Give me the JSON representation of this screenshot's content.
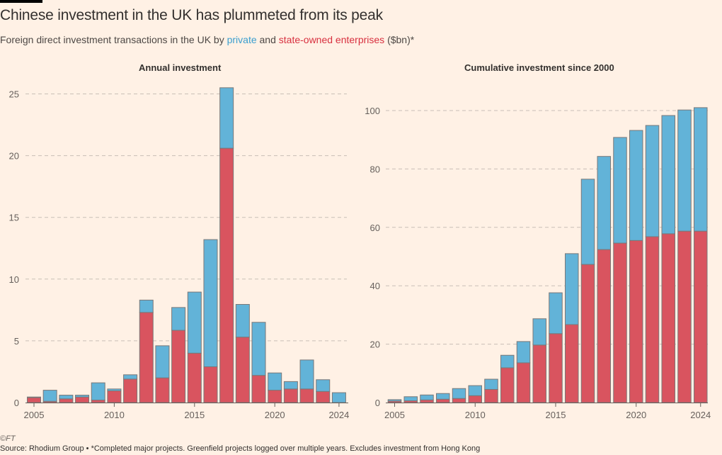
{
  "header": {
    "title": "Chinese investment in the UK has plummeted from its peak",
    "subtitle_prefix": "Foreign direct investment transactions in the UK by ",
    "subtitle_private": "private",
    "subtitle_and": " and ",
    "subtitle_soe": "state-owned enterprises",
    "subtitle_suffix": " ($bn)*"
  },
  "colors": {
    "private": "#62B3D8",
    "state_owned": "#D9545F",
    "bar_outline": "#7A7878",
    "gridline": "#C9BFB6",
    "background": "#FFF1E5"
  },
  "chart_data": [
    {
      "type": "bar",
      "stacked": true,
      "title": "Annual investment",
      "xlabel": "",
      "ylabel": "$bn",
      "x": [
        2005,
        2006,
        2007,
        2008,
        2009,
        2010,
        2011,
        2012,
        2013,
        2014,
        2015,
        2016,
        2017,
        2018,
        2019,
        2020,
        2021,
        2022,
        2023,
        2024
      ],
      "xticks": [
        2005,
        2010,
        2015,
        2020,
        2024
      ],
      "yticks": [
        0,
        5,
        10,
        15,
        20,
        25
      ],
      "ylim": [
        0,
        26
      ],
      "grid": "horizontal dashed",
      "series": [
        {
          "name": "State-owned enterprises",
          "color": "#D9545F",
          "values": [
            0.4,
            0.1,
            0.3,
            0.45,
            0.2,
            0.95,
            1.9,
            7.3,
            2.0,
            5.85,
            4.0,
            2.9,
            20.6,
            5.3,
            2.2,
            1.0,
            1.1,
            1.1,
            0.9,
            0.0
          ]
        },
        {
          "name": "Private",
          "color": "#62B3D8",
          "values": [
            0.05,
            0.9,
            0.3,
            0.15,
            1.4,
            0.15,
            0.35,
            1.0,
            2.6,
            1.85,
            4.95,
            10.3,
            4.9,
            2.65,
            4.3,
            1.4,
            0.6,
            2.35,
            0.95,
            0.8
          ]
        }
      ]
    },
    {
      "type": "bar",
      "stacked": true,
      "title": "Cumulative investment since 2000",
      "xlabel": "",
      "ylabel": "$bn",
      "x": [
        2005,
        2006,
        2007,
        2008,
        2009,
        2010,
        2011,
        2012,
        2013,
        2014,
        2015,
        2016,
        2017,
        2018,
        2019,
        2020,
        2021,
        2022,
        2023,
        2024
      ],
      "xticks": [
        2005,
        2010,
        2015,
        2020,
        2024
      ],
      "yticks": [
        0,
        20,
        40,
        60,
        80,
        100
      ],
      "ylim": [
        0,
        104
      ],
      "grid": "horizontal dashed",
      "series": [
        {
          "name": "State-owned enterprises",
          "color": "#D9545F",
          "values": [
            0.5,
            0.6,
            0.9,
            1.15,
            1.4,
            2.35,
            4.5,
            11.9,
            13.6,
            19.7,
            23.6,
            26.7,
            47.3,
            52.4,
            54.6,
            55.5,
            56.8,
            57.8,
            58.7,
            58.7
          ]
        },
        {
          "name": "Private",
          "color": "#62B3D8",
          "values": [
            0.5,
            1.4,
            1.7,
            1.95,
            3.4,
            3.45,
            3.5,
            4.3,
            7.3,
            9.0,
            14.0,
            24.3,
            29.2,
            31.9,
            36.2,
            37.7,
            38.1,
            40.5,
            41.5,
            42.3
          ]
        }
      ]
    }
  ],
  "footer": {
    "copyright": "©FT",
    "source": "Source: Rhodium Group • *Completed major projects. Greenfield projects logged over multiple years. Excludes investment from Hong Kong"
  }
}
